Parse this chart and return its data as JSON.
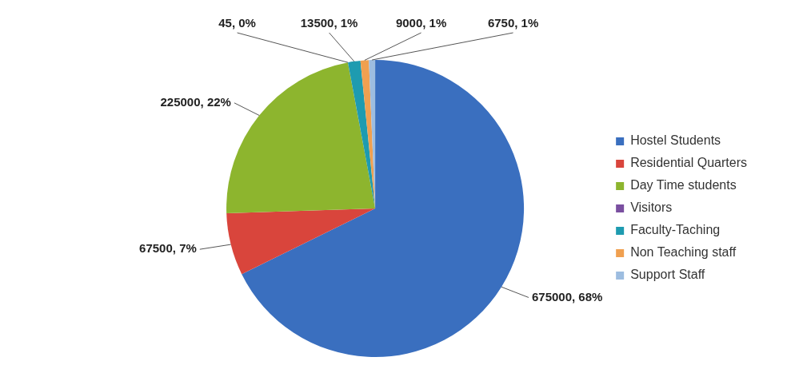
{
  "chart_data": {
    "type": "pie",
    "categories": [
      "Hostel Students",
      "Residential Quarters",
      "Day Time students",
      "Visitors",
      "Faculty-Taching",
      "Non Teaching staff",
      "Support Staff"
    ],
    "values": [
      675000,
      67500,
      225000,
      45,
      13500,
      9000,
      6750
    ],
    "colors": [
      "#3a6fbf",
      "#d9453c",
      "#8db52e",
      "#7a4fa0",
      "#1e9bb0",
      "#f0a050",
      "#9dbde0"
    ],
    "value_labels": [
      "675000, 68%",
      "67500, 7%",
      "225000, 22%",
      "45, 0%",
      "13500, 1%",
      "9000, 1%",
      "6750, 1%"
    ],
    "legend": "right"
  }
}
